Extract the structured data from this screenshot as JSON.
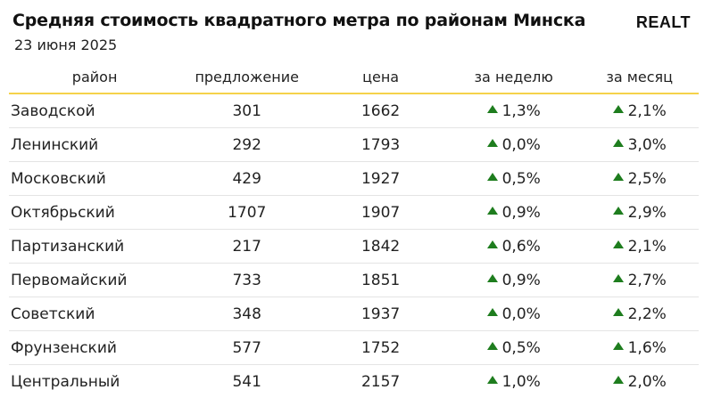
{
  "header": {
    "title": "Средняя стоимость квадратного метра по районам Минска",
    "date": "23 июня 2025",
    "logo": "REALT"
  },
  "colors": {
    "accent": "#f5d24a",
    "up": "#1e7d1e"
  },
  "table": {
    "columns": [
      "район",
      "предложение",
      "цена",
      "за неделю",
      "за месяц"
    ],
    "rows": [
      {
        "district": "Заводской",
        "offers": "301",
        "price": "1662",
        "week": "1,3%",
        "month": "2,1%"
      },
      {
        "district": "Ленинский",
        "offers": "292",
        "price": "1793",
        "week": "0,0%",
        "month": "3,0%"
      },
      {
        "district": "Московский",
        "offers": "429",
        "price": "1927",
        "week": "0,5%",
        "month": "2,5%"
      },
      {
        "district": "Октябрьский",
        "offers": "1707",
        "price": "1907",
        "week": "0,9%",
        "month": "2,9%"
      },
      {
        "district": "Партизанский",
        "offers": "217",
        "price": "1842",
        "week": "0,6%",
        "month": "2,1%"
      },
      {
        "district": "Первомайский",
        "offers": "733",
        "price": "1851",
        "week": "0,9%",
        "month": "2,7%"
      },
      {
        "district": "Советский",
        "offers": "348",
        "price": "1937",
        "week": "0,0%",
        "month": "2,2%"
      },
      {
        "district": "Фрунзенский",
        "offers": "577",
        "price": "1752",
        "week": "0,5%",
        "month": "1,6%"
      },
      {
        "district": "Центральный",
        "offers": "541",
        "price": "2157",
        "week": "1,0%",
        "month": "2,0%"
      }
    ]
  }
}
